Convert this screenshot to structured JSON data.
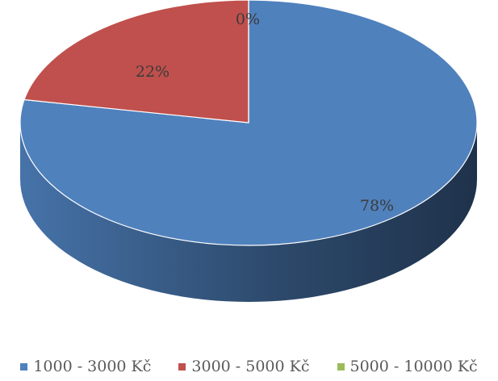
{
  "chart_data": {
    "type": "pie",
    "style": "3d",
    "categories": [
      "1000 - 3000 Kč",
      "3000 - 5000 Kč",
      "5000 - 10000 Kč"
    ],
    "values": [
      78,
      22,
      0
    ],
    "value_labels": [
      "78%",
      "22%",
      "0%"
    ],
    "colors": [
      "#4f81bd",
      "#c0504d",
      "#9bbb59"
    ],
    "legend_position": "bottom"
  }
}
